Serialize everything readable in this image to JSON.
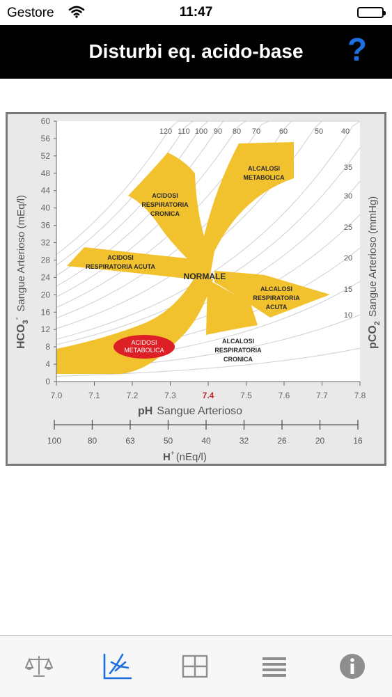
{
  "status_bar": {
    "carrier": "Gestore",
    "time": "11:47"
  },
  "nav": {
    "title": "Disturbi eq. acido-base",
    "help_label": "?"
  },
  "chart": {
    "y_left_label_a": "HCO",
    "y_left_label_sub": "3",
    "y_left_label_sup": "-",
    "y_left_label_b": "Sangue Arterioso (mEq/l)",
    "y_right_label_a": "pCO",
    "y_right_label_sub": "2",
    "y_right_label_b": "Sangue Arterioso (mmHg)",
    "x_label_bold": "pH",
    "x_label": "Sangue Arterioso",
    "h_label_bold": "H",
    "h_label_sup": "+",
    "h_label": "(nEq/l)",
    "y_ticks": [
      "0",
      "4",
      "8",
      "12",
      "16",
      "20",
      "24",
      "28",
      "32",
      "36",
      "40",
      "44",
      "48",
      "52",
      "56",
      "60"
    ],
    "ph_ticks": [
      "7.0",
      "7.1",
      "7.2",
      "7.3",
      "7.4",
      "7.5",
      "7.6",
      "7.7",
      "7.8"
    ],
    "h_ticks": [
      "100",
      "80",
      "63",
      "50",
      "40",
      "32",
      "26",
      "20",
      "16"
    ],
    "pco2_top_ticks": [
      "120",
      "110",
      "100",
      "90",
      "80",
      "70",
      "60",
      "50",
      "40"
    ],
    "pco2_right_ticks": [
      "35",
      "30",
      "25",
      "20",
      "15",
      "10"
    ],
    "regions": {
      "acidosi_resp_cronica": [
        "ACIDOSI",
        "RESPIRATORIA",
        "CRONICA"
      ],
      "alcalosi_metabolica": [
        "ALCALOSI",
        "METABOLICA"
      ],
      "acidosi_resp_acuta": [
        "ACIDOSI",
        "RESPIRATORIA ACUTA"
      ],
      "normale": "NORMALE",
      "alcalosi_resp_acuta": [
        "ALCALOSI",
        "RESPIRATORIA",
        "ACUTA"
      ],
      "acidosi_metabolica": [
        "ACIDOSI",
        "METABOLICA"
      ],
      "alcalosi_resp_cronica": [
        "ALCALOSI",
        "RESPIRATORIA",
        "CRONICA"
      ]
    },
    "colors": {
      "band": "#f2c12e",
      "highlight": "#dd1f26",
      "ph_marker": "#c0262c"
    }
  },
  "tabs": [
    {
      "icon": "scale-icon",
      "selected": false
    },
    {
      "icon": "chart-icon",
      "selected": true
    },
    {
      "icon": "grid-icon",
      "selected": false
    },
    {
      "icon": "list-icon",
      "selected": false
    },
    {
      "icon": "info-icon",
      "selected": false
    }
  ]
}
